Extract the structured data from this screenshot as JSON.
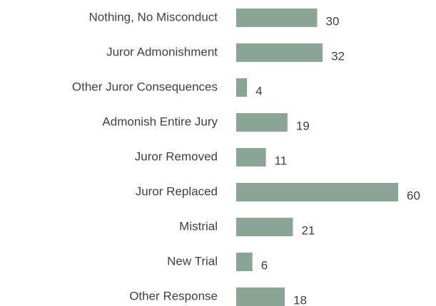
{
  "chart_data": {
    "type": "barh",
    "categories": [
      "Nothing, No Misconduct",
      "Juror Admonishment",
      "Other Juror Consequences",
      "Admonish Entire Jury",
      "Juror Removed",
      "Juror Replaced",
      "Mistrial",
      "New Trial",
      "Other Response"
    ],
    "values": [
      30,
      32,
      4,
      19,
      11,
      60,
      21,
      6,
      18
    ],
    "color": "#8aa596"
  }
}
